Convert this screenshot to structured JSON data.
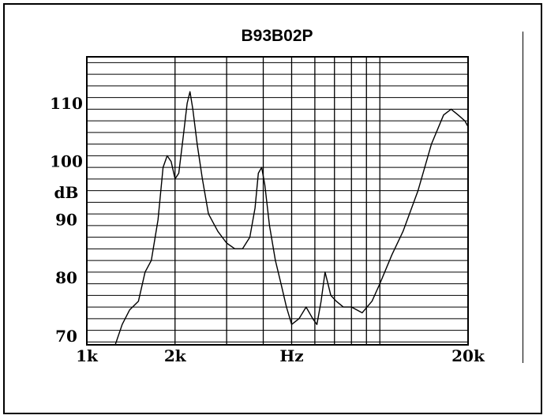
{
  "chart_data": {
    "type": "line",
    "title": "B93B02P",
    "ylabel": "dB",
    "xlabel": "Hz",
    "x_scale": "log",
    "xlim": [
      1000,
      20000
    ],
    "ylim": [
      68.5,
      118
    ],
    "grid": true,
    "x_ticks": [
      {
        "value": 1000,
        "label": "1k"
      },
      {
        "value": 2000,
        "label": "2k"
      },
      {
        "value": 5000,
        "label": "Hz"
      },
      {
        "value": 20000,
        "label": "20k"
      }
    ],
    "y_ticks": [
      {
        "value": 70,
        "label": "70"
      },
      {
        "value": 80,
        "label": "80"
      },
      {
        "value": 90,
        "label": "90"
      },
      {
        "value": 100,
        "label": "100"
      },
      {
        "value": 110,
        "label": "110"
      }
    ],
    "series": [
      {
        "name": "",
        "x": [
          1250,
          1320,
          1400,
          1500,
          1580,
          1660,
          1750,
          1820,
          1880,
          1940,
          2000,
          2060,
          2130,
          2200,
          2250,
          2300,
          2380,
          2480,
          2600,
          2800,
          3000,
          3200,
          3400,
          3600,
          3750,
          3850,
          3950,
          4050,
          4200,
          4400,
          4600,
          4800,
          5000,
          5300,
          5600,
          5900,
          6100,
          6300,
          6500,
          6650,
          6800,
          7100,
          7500,
          8000,
          8700,
          9400,
          10000,
          11000,
          12000,
          13500,
          15000,
          16500,
          17500,
          18500,
          19500,
          20000
        ],
        "y": [
          68.5,
          72,
          74.5,
          76,
          81,
          83,
          90,
          99,
          101,
          100,
          97,
          98,
          104,
          110,
          112,
          109,
          103,
          97,
          91,
          88,
          86,
          85,
          85,
          87,
          92,
          98,
          99,
          96,
          89,
          83,
          79,
          75,
          72,
          73,
          75,
          73,
          72,
          76,
          81,
          79,
          77,
          76,
          75,
          75,
          74,
          76,
          79,
          84,
          88,
          95,
          103,
          108,
          109,
          108,
          107,
          106
        ]
      }
    ]
  }
}
